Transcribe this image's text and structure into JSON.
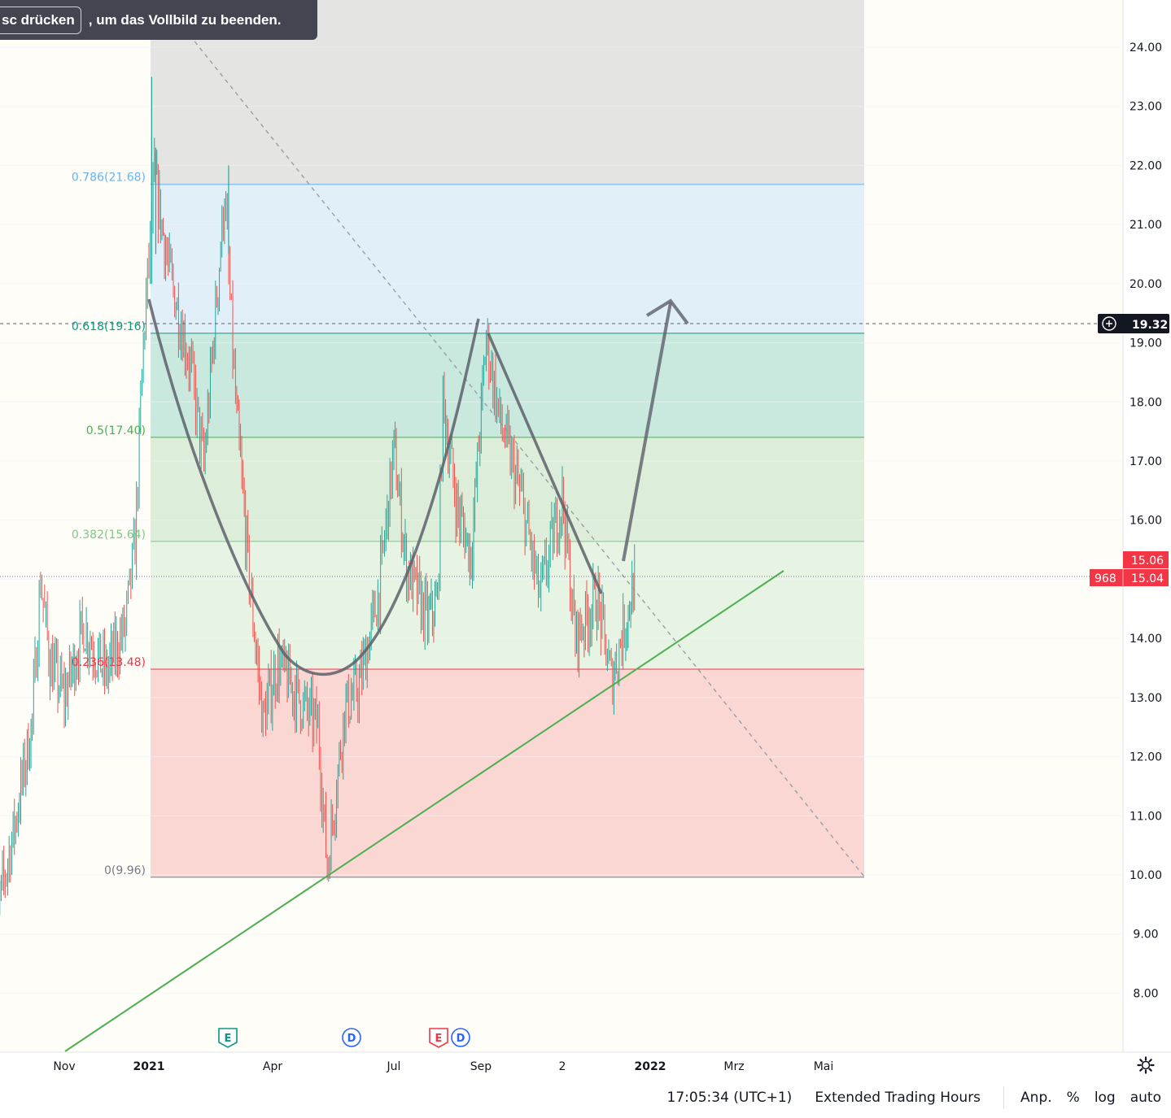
{
  "toast": {
    "key_label": "sc drücken",
    "message": ", um das Vollbild zu beenden."
  },
  "status_bar": {
    "time": "17:05:34 (UTC+1)",
    "session": "Extended Trading Hours",
    "adjust": "Anp.",
    "percent": "%",
    "log": "log",
    "auto": "auto"
  },
  "colors": {
    "up": "#26a69a",
    "down": "#ef5350",
    "fib_0": "#787b86",
    "fib_236": "#f23645",
    "fib_382": "#81c784",
    "fib_5": "#4caf50",
    "fib_618": "#089981",
    "fib_786": "#64b5f6",
    "trendline": "#4caf50",
    "drawing": "#5d606b",
    "price_label": "#f23645",
    "crosshair_label": "#131722"
  },
  "chart_data": {
    "type": "candlestick",
    "y_ticks": [
      "24.00",
      "23.00",
      "22.00",
      "21.00",
      "20.00",
      "19.00",
      "18.00",
      "17.00",
      "16.00",
      "15.00",
      "14.00",
      "13.00",
      "12.00",
      "11.00",
      "10.00",
      "9.00",
      "8.00"
    ],
    "x_ticks": [
      "Nov",
      "2021",
      "Apr",
      "Jul",
      "Sep",
      "2",
      "2022",
      "Mrz",
      "Mai"
    ],
    "y_range": [
      7.0,
      24.8
    ],
    "crosshair_price": "19.32",
    "last_price_labels": {
      "high": "15.06",
      "close": "15.04",
      "countdown": "968"
    },
    "fib_levels": [
      {
        "label": "0.786(21.68)",
        "value": 21.68
      },
      {
        "label": "0.618(19.16)",
        "value": 19.16
      },
      {
        "label": "0.5(17.40)",
        "value": 17.4
      },
      {
        "label": "0.382(15.64)",
        "value": 15.64
      },
      {
        "label": "0.236(13.48)",
        "value": 13.48
      },
      {
        "label": "0(9.96)",
        "value": 9.96
      }
    ],
    "events": [
      {
        "type": "E",
        "date": "2021-02"
      },
      {
        "type": "D",
        "date": "2021-05"
      },
      {
        "type": "E",
        "date": "2021-08"
      },
      {
        "type": "D",
        "date": "2021-08"
      }
    ],
    "price_path": [
      [
        "2020-09-01",
        8.9
      ],
      [
        "2020-09-20",
        10.8
      ],
      [
        "2020-10-05",
        12.6
      ],
      [
        "2020-10-12",
        15.0
      ],
      [
        "2020-10-20",
        13.6
      ],
      [
        "2020-11-01",
        13.0
      ],
      [
        "2020-11-15",
        14.2
      ],
      [
        "2020-12-01",
        13.4
      ],
      [
        "2020-12-15",
        14.2
      ],
      [
        "2020-12-22",
        15.6
      ],
      [
        "2020-12-28",
        19.0
      ],
      [
        "2021-01-05",
        21.8
      ],
      [
        "2021-01-15",
        20.3
      ],
      [
        "2021-02-01",
        18.5
      ],
      [
        "2021-02-10",
        16.9
      ],
      [
        "2021-02-25",
        21.5
      ],
      [
        "2021-03-05",
        18.0
      ],
      [
        "2021-03-15",
        15.0
      ],
      [
        "2021-03-25",
        12.6
      ],
      [
        "2021-04-05",
        13.6
      ],
      [
        "2021-04-20",
        13.0
      ],
      [
        "2021-05-05",
        12.5
      ],
      [
        "2021-05-12",
        10.1
      ],
      [
        "2021-05-25",
        12.8
      ],
      [
        "2021-06-05",
        13.2
      ],
      [
        "2021-06-20",
        14.8
      ],
      [
        "2021-07-01",
        17.2
      ],
      [
        "2021-07-10",
        15.2
      ],
      [
        "2021-07-25",
        14.3
      ],
      [
        "2021-08-01",
        14.6
      ],
      [
        "2021-08-05",
        18.0
      ],
      [
        "2021-08-15",
        16.2
      ],
      [
        "2021-08-25",
        15.4
      ],
      [
        "2021-09-05",
        19.1
      ],
      [
        "2021-09-15",
        17.7
      ],
      [
        "2021-10-01",
        16.4
      ],
      [
        "2021-10-15",
        14.7
      ],
      [
        "2021-11-01",
        16.4
      ],
      [
        "2021-11-10",
        14.0
      ],
      [
        "2021-11-25",
        14.7
      ],
      [
        "2021-12-05",
        13.3
      ],
      [
        "2021-12-15",
        14.3
      ],
      [
        "2021-12-22",
        15.06
      ]
    ]
  }
}
